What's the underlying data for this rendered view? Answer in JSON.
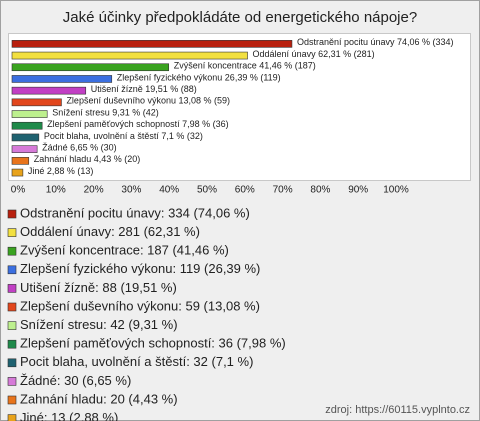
{
  "chart_data": {
    "type": "hbar",
    "title": "Jaké účinky předpokládáte od energetického nápoje?",
    "categories": [
      "Odstranění pocitu únavy",
      "Oddálení únavy",
      "Zvýšení koncentrace",
      "Zlepšení fyzického výkonu",
      "Utišení žízně",
      "Zlepšení duševního výkonu",
      "Snížení stresu",
      "Zlepšení paměťových schopností",
      "Pocit blaha, uvolnění a štěstí",
      "Žádné",
      "Zahnání hladu",
      "Jiné"
    ],
    "values": [
      74.06,
      62.31,
      41.46,
      26.39,
      19.51,
      13.08,
      9.31,
      7.98,
      7.1,
      6.65,
      4.43,
      2.88
    ],
    "value_labels": [
      "Odstranění pocitu únavy 74,06 % (334)",
      "Oddálení únavy 62,31 % (281)",
      "Zvýšení koncentrace 41,46 % (187)",
      "Zlepšení fyzického výkonu 26,39 % (119)",
      "Utišení žízně 19,51 % (88)",
      "Zlepšení duševního výkonu 13,08 % (59)",
      "Snížení stresu 9,31 % (42)",
      "Zlepšení paměťových schopností 7,98 % (36)",
      "Pocit blaha, uvolnění a štěstí 7,1 % (32)",
      "Žádné 6,65 % (30)",
      "Zahnání hladu 4,43 % (20)",
      "Jiné 2,88 % (13)"
    ],
    "legend_labels": [
      "Odstranění pocitu únavy: 334 (74,06 %)",
      "Oddálení únavy: 281 (62,31 %)",
      "Zvýšení koncentrace: 187 (41,46 %)",
      "Zlepšení fyzického výkonu: 119 (26,39 %)",
      "Utišení žízně: 88 (19,51 %)",
      "Zlepšení duševního výkonu: 59 (13,08 %)",
      "Snížení stresu: 42 (9,31 %)",
      "Zlepšení paměťových schopností: 36 (7,98 %)",
      "Pocit blaha, uvolnění a štěstí: 32 (7,1 %)",
      "Žádné: 30 (6,65 %)",
      "Zahnání hladu: 20 (4,43 %)",
      "Jiné: 13 (2,88 %)"
    ],
    "colors": [
      "#b8200e",
      "#f2e040",
      "#3aa320",
      "#3b6fe0",
      "#c13fc4",
      "#e2461c",
      "#bdf08e",
      "#1f8a4a",
      "#1f6270",
      "#d67ad8",
      "#e8741c",
      "#e8a31c"
    ],
    "xlim": [
      0,
      100
    ],
    "xticks": [
      {
        "value": 0,
        "label": "0%"
      },
      {
        "value": 10,
        "label": "10%"
      },
      {
        "value": 20,
        "label": "20%"
      },
      {
        "value": 30,
        "label": "30%"
      },
      {
        "value": 40,
        "label": "40%"
      },
      {
        "value": 50,
        "label": "50%"
      },
      {
        "value": 60,
        "label": "60%"
      },
      {
        "value": 70,
        "label": "70%"
      },
      {
        "value": 80,
        "label": "80%"
      },
      {
        "value": 90,
        "label": "90%"
      },
      {
        "value": 100,
        "label": "100%"
      }
    ],
    "grid": false,
    "source": "zdroj: https://60115.vyplnto.cz"
  }
}
